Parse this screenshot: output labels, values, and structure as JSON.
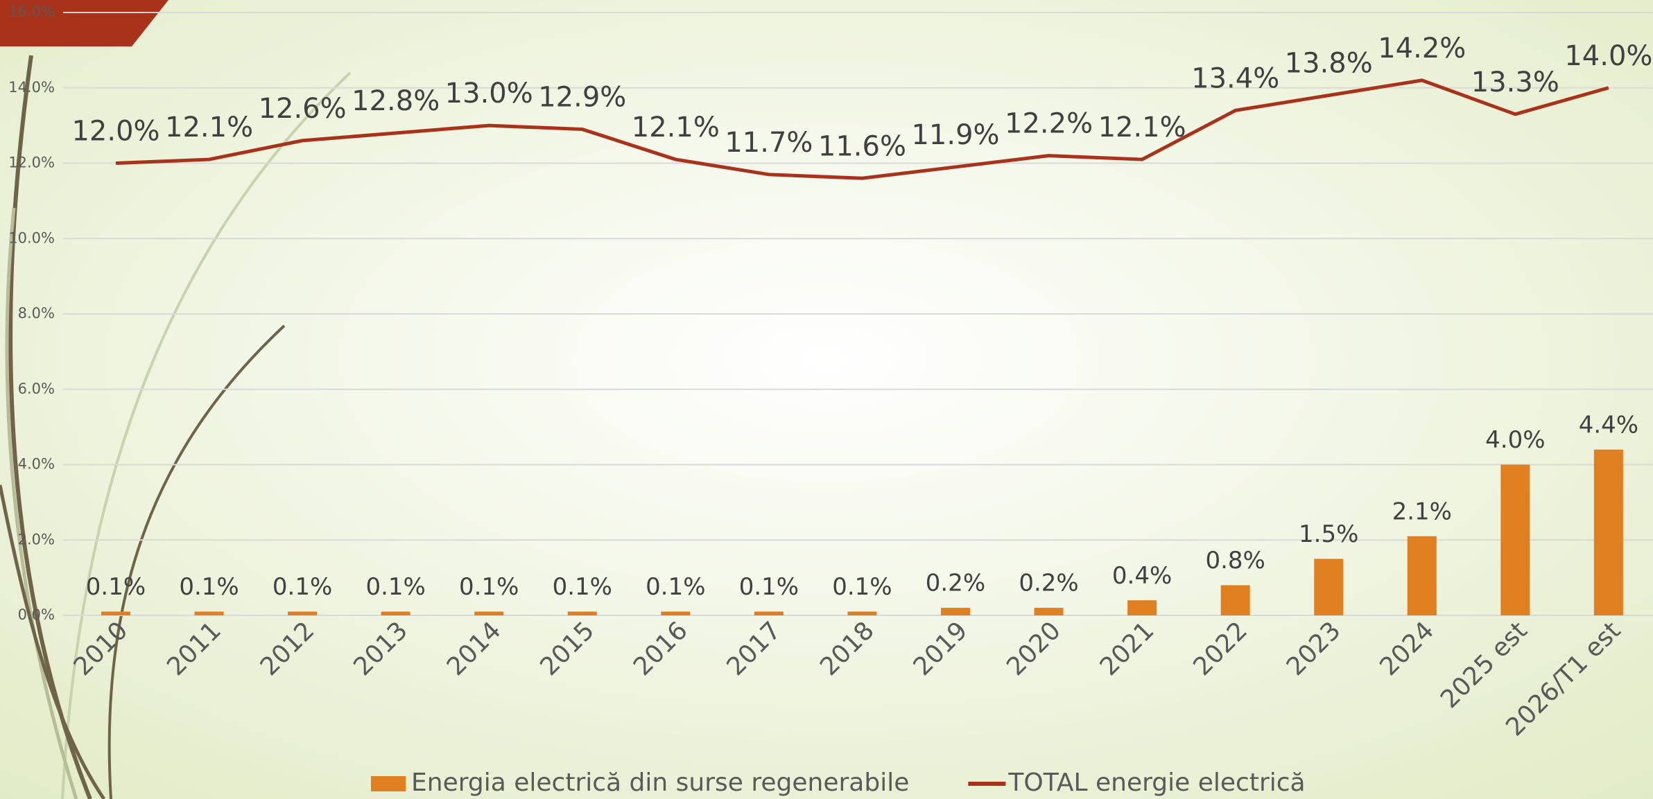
{
  "chart_data": {
    "type": "combo",
    "categories": [
      "2010",
      "2011",
      "2012",
      "2013",
      "2014",
      "2015",
      "2016",
      "2017",
      "2018",
      "2019",
      "2020",
      "2021",
      "2022",
      "2023",
      "2024",
      "2025 est",
      "2026/T1 est"
    ],
    "series": [
      {
        "name": "Energia electrică din surse regenerabile",
        "type": "bar",
        "color": "#e07f1f",
        "values": [
          0.1,
          0.1,
          0.1,
          0.1,
          0.1,
          0.1,
          0.1,
          0.1,
          0.1,
          0.2,
          0.2,
          0.4,
          0.8,
          1.5,
          2.1,
          4.0,
          4.4
        ],
        "value_labels": [
          "0.1%",
          "0.1%",
          "0.1%",
          "0.1%",
          "0.1%",
          "0.1%",
          "0.1%",
          "0.1%",
          "0.1%",
          "0.2%",
          "0.2%",
          "0.4%",
          "0.8%",
          "1.5%",
          "2.1%",
          "4.0%",
          "4.4%"
        ]
      },
      {
        "name": "TOTAL energie electrică",
        "type": "line",
        "color": "#a8321a",
        "values": [
          12.0,
          12.1,
          12.6,
          12.8,
          13.0,
          12.9,
          12.1,
          11.7,
          11.6,
          11.9,
          12.2,
          12.1,
          13.4,
          13.8,
          14.2,
          13.3,
          14.0
        ],
        "value_labels": [
          "12.0%",
          "12.1%",
          "12.6%",
          "12.8%",
          "13.0%",
          "12.9%",
          "12.1%",
          "11.7%",
          "11.6%",
          "11.9%",
          "12.2%",
          "12.1%",
          "13.4%",
          "13.8%",
          "14.2%",
          "13.3%",
          "14.0%"
        ]
      }
    ],
    "ylim": [
      0,
      16
    ],
    "yticks": [
      {
        "value": 0,
        "label": "0.0%"
      },
      {
        "value": 2,
        "label": "2.0%"
      },
      {
        "value": 4,
        "label": "4.0%"
      },
      {
        "value": 6,
        "label": "6.0%"
      },
      {
        "value": 8,
        "label": "8.0%"
      },
      {
        "value": 10,
        "label": "10.0%"
      },
      {
        "value": 12,
        "label": "12.0%"
      },
      {
        "value": 14,
        "label": "14.0%"
      },
      {
        "value": 16,
        "label": "16.0%"
      }
    ],
    "grid": true,
    "legend": "bottom"
  }
}
